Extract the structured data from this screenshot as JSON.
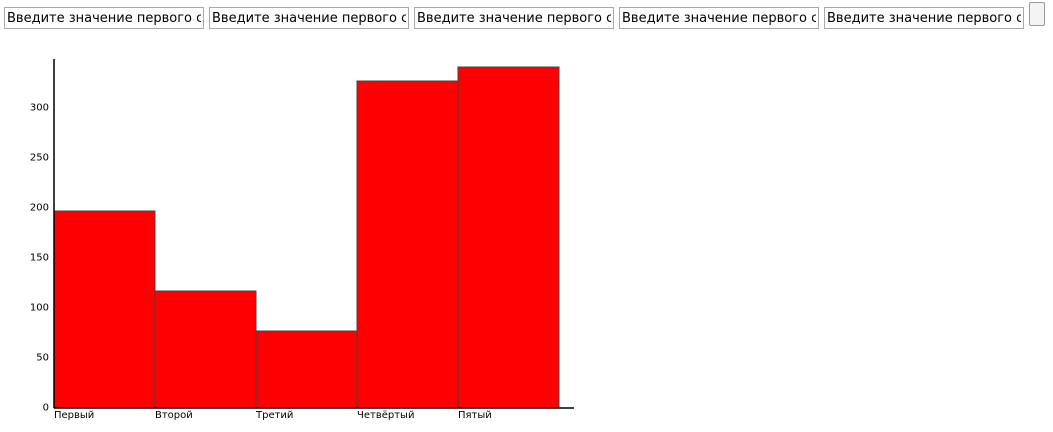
{
  "inputs": {
    "columns": [
      {
        "value": "Введите значение первого столбца"
      },
      {
        "value": "Введите значение первого столбца"
      },
      {
        "value": "Введите значение первого столбца"
      },
      {
        "value": "Введите значение первого столбца"
      },
      {
        "value": "Введите значение первого столбца"
      }
    ],
    "checkbox_checked": false
  },
  "chart_data": {
    "type": "bar",
    "categories": [
      "Первый",
      "Второй",
      "Третий",
      "Четвёртый",
      "Пятый"
    ],
    "values": [
      197,
      117,
      77,
      327,
      341
    ],
    "yticks": [
      0,
      50,
      100,
      150,
      200,
      250,
      300
    ],
    "ylim": [
      0,
      349
    ],
    "title": "",
    "xlabel": "",
    "ylabel": "",
    "bar_color": "#ff0000",
    "bar_stroke": "#444444",
    "grid": false,
    "legend": "none"
  }
}
